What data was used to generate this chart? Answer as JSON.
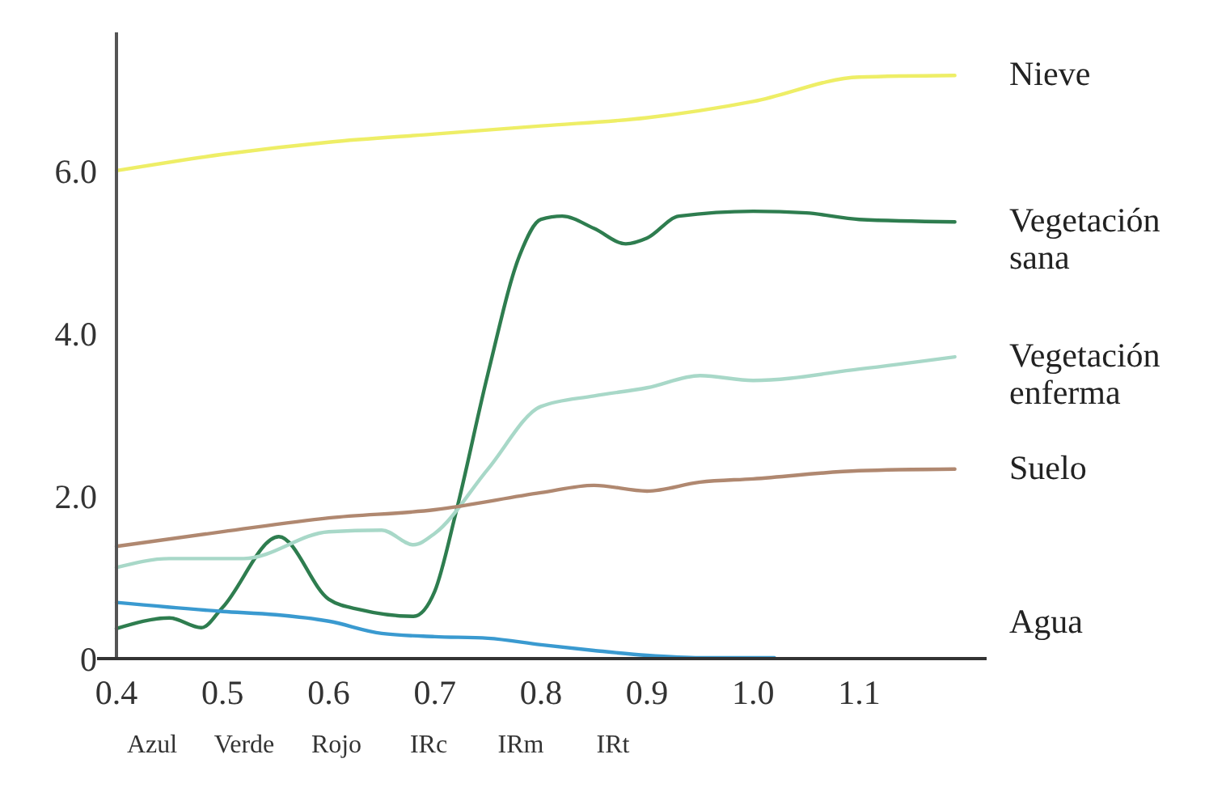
{
  "chart_data": {
    "type": "line",
    "xlim": [
      0.4,
      1.22
    ],
    "xticks": [
      {
        "value": 0.4,
        "label": "0.4"
      },
      {
        "value": 0.5,
        "label": "0.5"
      },
      {
        "value": 0.6,
        "label": "0.6"
      },
      {
        "value": 0.7,
        "label": "0.7"
      },
      {
        "value": 0.8,
        "label": "0.8"
      },
      {
        "value": 0.9,
        "label": "0.9"
      },
      {
        "value": 1.0,
        "label": "1.0"
      },
      {
        "value": 1.1,
        "label": "1.1"
      }
    ],
    "ylim": [
      0,
      7.7
    ],
    "yticks": [
      0,
      {
        "value": 2,
        "label": "2.0"
      },
      {
        "value": 4,
        "label": "4.0"
      },
      {
        "value": 6,
        "label": "6.0"
      }
    ],
    "grid": false,
    "annotations": [
      "Azul",
      "Verde",
      "Rojo",
      "IRc",
      "IRm",
      "IRt"
    ],
    "series": [
      {
        "name": "Nieve",
        "color": "#eeee66",
        "x": [
          0.4,
          0.5,
          0.6,
          0.7,
          0.8,
          0.9,
          1.0,
          1.1,
          1.19
        ],
        "values": [
          6.0,
          6.2,
          6.35,
          6.45,
          6.55,
          6.65,
          6.85,
          7.15,
          7.17
        ]
      },
      {
        "name": "Vegetación sana",
        "color": "#2e7d4f",
        "x": [
          0.4,
          0.45,
          0.48,
          0.5,
          0.553,
          0.6,
          0.63,
          0.68,
          0.7,
          0.72,
          0.75,
          0.78,
          0.8,
          0.82,
          0.85,
          0.88,
          0.9,
          0.93,
          1.0,
          1.05,
          1.1,
          1.19
        ],
        "values": [
          0.37,
          0.5,
          0.38,
          0.63,
          1.5,
          0.73,
          0.6,
          0.52,
          0.83,
          1.8,
          3.5,
          4.96,
          5.4,
          5.44,
          5.29,
          5.1,
          5.17,
          5.44,
          5.5,
          5.48,
          5.4,
          5.37
        ]
      },
      {
        "name": "Vegetación enferma",
        "color": "#a8d8c8",
        "x": [
          0.4,
          0.45,
          0.52,
          0.6,
          0.65,
          0.68,
          0.7,
          0.75,
          0.8,
          0.85,
          0.9,
          0.95,
          1.0,
          1.1,
          1.19
        ],
        "values": [
          1.12,
          1.23,
          1.23,
          1.56,
          1.58,
          1.4,
          1.54,
          2.33,
          3.1,
          3.23,
          3.33,
          3.48,
          3.42,
          3.56,
          3.71
        ]
      },
      {
        "name": "Suelo",
        "color": "#b08870",
        "x": [
          0.4,
          0.5,
          0.6,
          0.7,
          0.8,
          0.85,
          0.9,
          0.95,
          1.0,
          1.1,
          1.19
        ],
        "values": [
          1.38,
          1.56,
          1.73,
          1.83,
          2.04,
          2.13,
          2.06,
          2.17,
          2.21,
          2.31,
          2.33
        ]
      },
      {
        "name": "Agua",
        "color": "#3a9ad0",
        "x": [
          0.4,
          0.5,
          0.55,
          0.6,
          0.65,
          0.7,
          0.75,
          0.8,
          0.85,
          0.9,
          0.95,
          1.02
        ],
        "values": [
          0.69,
          0.58,
          0.54,
          0.46,
          0.31,
          0.27,
          0.25,
          0.17,
          0.1,
          0.04,
          0.01,
          0.01
        ]
      }
    ]
  }
}
